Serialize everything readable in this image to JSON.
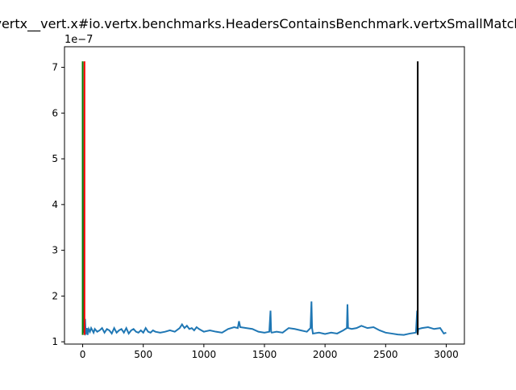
{
  "chart_data": {
    "type": "line",
    "title": "vertx__vert.x#io.vertx.benchmarks.HeadersContainsBenchmark.vertxSmallMatch",
    "xlabel": "",
    "ylabel": "",
    "y_offset_label": "1e−7",
    "xlim": [
      -150,
      3150
    ],
    "ylim": [
      0.95,
      7.45
    ],
    "y_scale_factor": 1e-07,
    "grid": false,
    "legend": "none",
    "x_ticks": [
      0,
      500,
      1000,
      1500,
      2000,
      2500,
      3000
    ],
    "x_tick_labels": [
      "0",
      "500",
      "1000",
      "1500",
      "2000",
      "2500",
      "3000"
    ],
    "y_ticks": [
      1,
      2,
      3,
      4,
      5,
      6,
      7
    ],
    "y_tick_labels": [
      "1",
      "2",
      "3",
      "4",
      "5",
      "6",
      "7"
    ],
    "series": [
      {
        "color": "#1f77b4",
        "x": [
          0,
          5,
          10,
          15,
          20,
          25,
          30,
          35,
          40,
          50,
          60,
          70,
          80,
          90,
          100,
          120,
          140,
          160,
          180,
          200,
          220,
          240,
          260,
          280,
          300,
          320,
          340,
          360,
          380,
          400,
          420,
          440,
          460,
          480,
          500,
          520,
          540,
          560,
          580,
          600,
          640,
          680,
          720,
          760,
          800,
          820,
          840,
          860,
          880,
          900,
          920,
          940,
          960,
          980,
          1000,
          1050,
          1100,
          1150,
          1200,
          1250,
          1280,
          1290,
          1300,
          1350,
          1400,
          1450,
          1500,
          1540,
          1550,
          1555,
          1560,
          1600,
          1650,
          1700,
          1750,
          1800,
          1850,
          1880,
          1888,
          1893,
          1900,
          1950,
          2000,
          2050,
          2100,
          2150,
          2180,
          2185,
          2190,
          2220,
          2260,
          2300,
          2350,
          2400,
          2450,
          2500,
          2550,
          2600,
          2650,
          2700,
          2750,
          2760,
          2765,
          2770,
          2800,
          2850,
          2900,
          2950,
          2980,
          3000
        ],
        "y": [
          7.1,
          1.2,
          1.25,
          1.22,
          1.5,
          1.18,
          1.2,
          1.3,
          1.15,
          1.28,
          1.22,
          1.3,
          1.25,
          1.2,
          1.28,
          1.22,
          1.25,
          1.3,
          1.2,
          1.28,
          1.25,
          1.18,
          1.3,
          1.2,
          1.25,
          1.28,
          1.2,
          1.3,
          1.18,
          1.25,
          1.28,
          1.22,
          1.2,
          1.25,
          1.2,
          1.3,
          1.22,
          1.2,
          1.25,
          1.22,
          1.2,
          1.22,
          1.25,
          1.22,
          1.3,
          1.38,
          1.3,
          1.35,
          1.28,
          1.3,
          1.25,
          1.32,
          1.28,
          1.25,
          1.22,
          1.25,
          1.22,
          1.2,
          1.28,
          1.32,
          1.3,
          1.45,
          1.32,
          1.3,
          1.28,
          1.22,
          1.2,
          1.22,
          1.68,
          1.22,
          1.2,
          1.22,
          1.2,
          1.3,
          1.28,
          1.25,
          1.22,
          1.3,
          1.88,
          1.3,
          1.18,
          1.2,
          1.17,
          1.2,
          1.18,
          1.25,
          1.3,
          1.82,
          1.3,
          1.28,
          1.3,
          1.35,
          1.3,
          1.32,
          1.25,
          1.2,
          1.18,
          1.16,
          1.15,
          1.18,
          1.2,
          1.68,
          1.2,
          1.28,
          1.3,
          1.32,
          1.28,
          1.3,
          1.18,
          1.2
        ]
      }
    ],
    "vertical_lines": [
      {
        "x": 0,
        "y_top": 7.13,
        "y_bottom": 1.15,
        "color": "#008000"
      },
      {
        "x": 15,
        "y_top": 7.13,
        "y_bottom": 1.15,
        "color": "#ff0000"
      },
      {
        "x": 2765,
        "y_top": 7.13,
        "y_bottom": 1.15,
        "color": "#000000"
      }
    ]
  }
}
